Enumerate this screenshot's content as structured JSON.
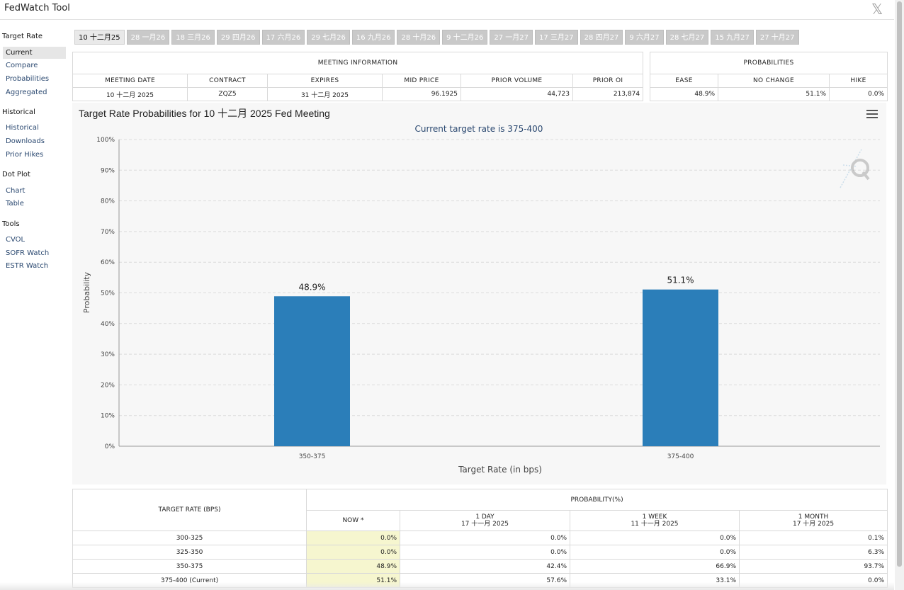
{
  "app": {
    "title": "FedWatch Tool",
    "close_glyph": "𝕏"
  },
  "sidebar": {
    "groups": [
      {
        "label": "Target Rate",
        "items": [
          "Current",
          "Compare",
          "Probabilities",
          "Aggregated"
        ]
      },
      {
        "label": "Historical",
        "items": [
          "Historical",
          "Downloads",
          "Prior Hikes"
        ]
      },
      {
        "label": "Dot Plot",
        "items": [
          "Chart",
          "Table"
        ]
      },
      {
        "label": "Tools",
        "items": [
          "CVOL",
          "SOFR Watch",
          "ESTR Watch"
        ]
      }
    ],
    "active": "Current"
  },
  "tabs": [
    "10 十二月25",
    "28 一月26",
    "18 三月26",
    "29 四月26",
    "17 六月26",
    "29 七月26",
    "16 九月26",
    "28 十月26",
    "9 十二月26",
    "27 一月27",
    "17 三月27",
    "28 四月27",
    "9 六月27",
    "28 七月27",
    "15 九月27",
    "27 十月27"
  ],
  "meeting_info": {
    "heading": "MEETING INFORMATION",
    "columns": [
      "MEETING DATE",
      "CONTRACT",
      "EXPIRES",
      "MID PRICE",
      "PRIOR VOLUME",
      "PRIOR OI"
    ],
    "row": [
      "10 十二月 2025",
      "ZQZ5",
      "31 十二月 2025",
      "96.1925",
      "44,723",
      "213,874"
    ]
  },
  "probabilities": {
    "heading": "PROBABILITIES",
    "columns": [
      "EASE",
      "NO CHANGE",
      "HIKE"
    ],
    "row": [
      "48.9%",
      "51.1%",
      "0.0%"
    ]
  },
  "chart_data": {
    "type": "bar",
    "title": "Target Rate Probabilities for 10 十二月 2025 Fed Meeting",
    "subtitle": "Current target rate is 375-400",
    "categories": [
      "350-375",
      "375-400"
    ],
    "values": [
      48.9,
      51.1
    ],
    "data_labels": [
      "48.9%",
      "51.1%"
    ],
    "xlabel": "Target Rate (in bps)",
    "ylabel": "Probability",
    "ylim": [
      0,
      100
    ],
    "yticks": [
      "0%",
      "10%",
      "20%",
      "30%",
      "40%",
      "50%",
      "60%",
      "70%",
      "80%",
      "90%",
      "100%"
    ],
    "bar_color": "#2b7eb9",
    "grid": true
  },
  "prob_table": {
    "col_target": "TARGET RATE (BPS)",
    "col_group": "PROBABILITY(%)",
    "columns": [
      {
        "label": "NOW *",
        "date": ""
      },
      {
        "label": "1 DAY",
        "date": "17 十一月 2025"
      },
      {
        "label": "1 WEEK",
        "date": "11 十一月 2025"
      },
      {
        "label": "1 MONTH",
        "date": "17 十月 2025"
      }
    ],
    "rows": [
      {
        "rate": "300-325",
        "vals": [
          "0.0%",
          "0.0%",
          "0.0%",
          "0.1%"
        ]
      },
      {
        "rate": "325-350",
        "vals": [
          "0.0%",
          "0.0%",
          "0.0%",
          "6.3%"
        ]
      },
      {
        "rate": "350-375",
        "vals": [
          "48.9%",
          "42.4%",
          "66.9%",
          "93.7%"
        ]
      },
      {
        "rate": "375-400 (Current)",
        "vals": [
          "51.1%",
          "57.6%",
          "33.1%",
          "0.0%"
        ]
      }
    ]
  }
}
